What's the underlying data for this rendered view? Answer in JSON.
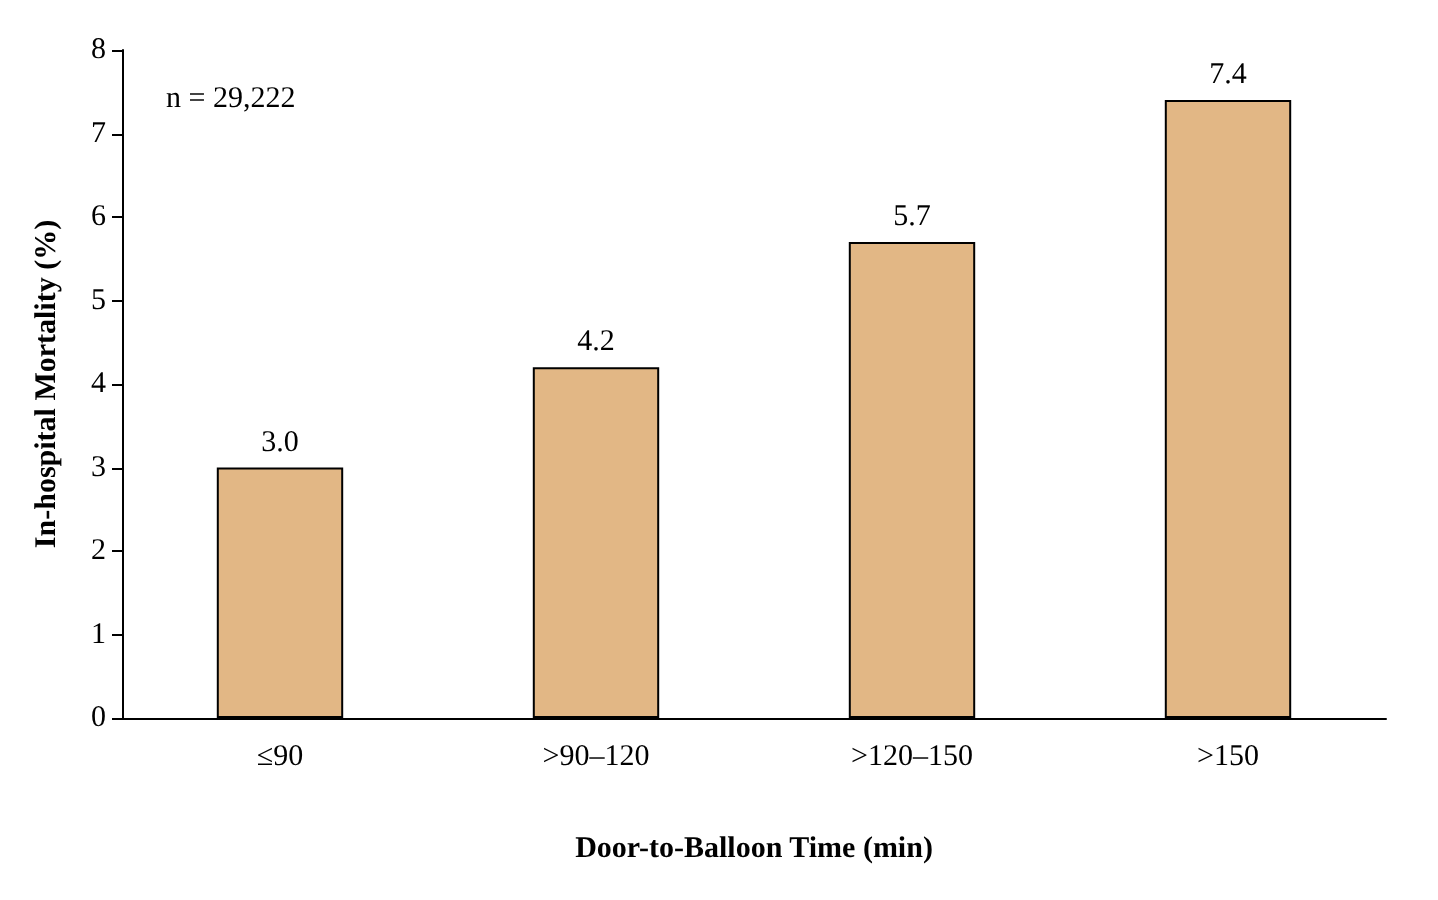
{
  "chart_data": {
    "type": "bar",
    "xlabel": "Door-to-Balloon Time (min)",
    "ylabel": "In-hospital Mortality (%)",
    "categories": [
      "≤90",
      ">90–120",
      ">120–150",
      ">150"
    ],
    "values": [
      3.0,
      4.2,
      5.7,
      7.4
    ],
    "value_labels": [
      "3.0",
      "4.2",
      "5.7",
      "7.4"
    ],
    "color": "#e2b785",
    "ylim": [
      0,
      8
    ],
    "yticks": [
      0,
      1,
      2,
      3,
      4,
      5,
      6,
      7,
      8
    ],
    "grid": false,
    "annotations": [
      "n = 29,222"
    ]
  }
}
